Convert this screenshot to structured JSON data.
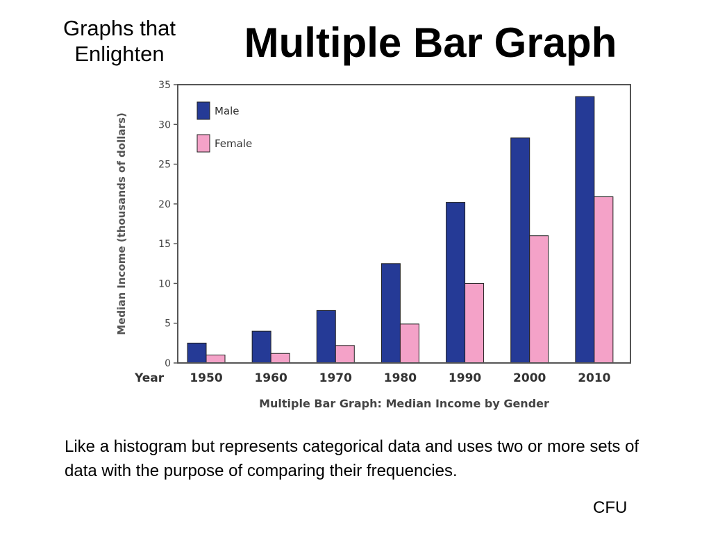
{
  "slide": {
    "corner_title_line1": "Graphs that",
    "corner_title_line2": "Enlighten",
    "title": "Multiple Bar Graph",
    "description": "Like a histogram but represents categorical data and uses two or more sets of data with the purpose of comparing their frequencies.",
    "footer_label": "CFU"
  },
  "chart_data": {
    "type": "bar",
    "title": "Multiple Bar Graph: Median Income by Gender",
    "xlabel": "Year",
    "ylabel": "Median Income (thousands of dollars)",
    "categories": [
      "1950",
      "1960",
      "1970",
      "1980",
      "1990",
      "2000",
      "2010"
    ],
    "series": [
      {
        "name": "Male",
        "color": "#253a96",
        "values": [
          2.5,
          4.0,
          6.6,
          12.5,
          20.2,
          28.3,
          33.5
        ]
      },
      {
        "name": "Female",
        "color": "#f4a2c8",
        "values": [
          1.0,
          1.2,
          2.2,
          4.9,
          10.0,
          16.0,
          20.9
        ]
      }
    ],
    "ylim": [
      0,
      35
    ],
    "yticks": [
      0,
      5,
      10,
      15,
      20,
      25,
      30,
      35
    ],
    "legend_position": "top-left",
    "grid": false
  }
}
